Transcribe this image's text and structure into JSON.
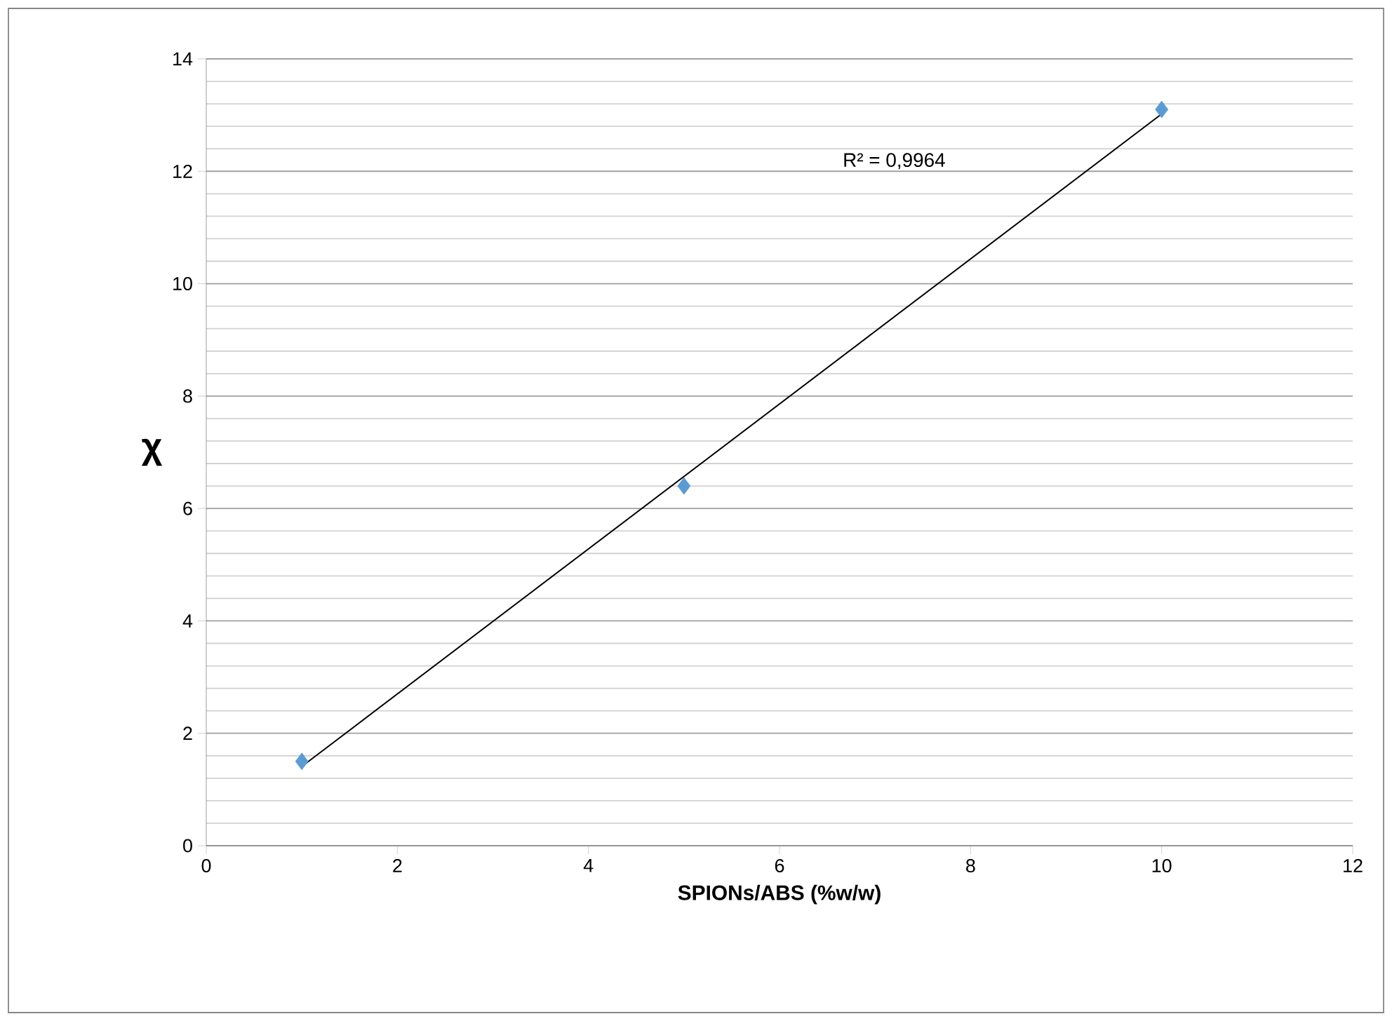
{
  "chart_data": {
    "type": "scatter",
    "xlabel": "SPIONs/ABS (%w/w)",
    "ylabel": "χ",
    "xlim": [
      0,
      12
    ],
    "xticks": [
      0,
      2,
      4,
      6,
      8,
      10,
      12
    ],
    "ylim": [
      0,
      14
    ],
    "yticks": [
      0,
      2,
      4,
      6,
      8,
      10,
      12,
      14
    ],
    "grid": "y",
    "marker": "diamond",
    "series": [
      {
        "color": "#5b9bd5",
        "x": [
          1,
          5,
          10
        ],
        "values": [
          1.5,
          6.4,
          13.1
        ]
      },
      {
        "type": "line",
        "color": "#000000",
        "x": [
          1,
          10
        ],
        "values": [
          1.41,
          13.02
        ],
        "marker": "none",
        "line_style": "solid"
      }
    ],
    "annotations": [
      "R² = 0,9964"
    ]
  }
}
